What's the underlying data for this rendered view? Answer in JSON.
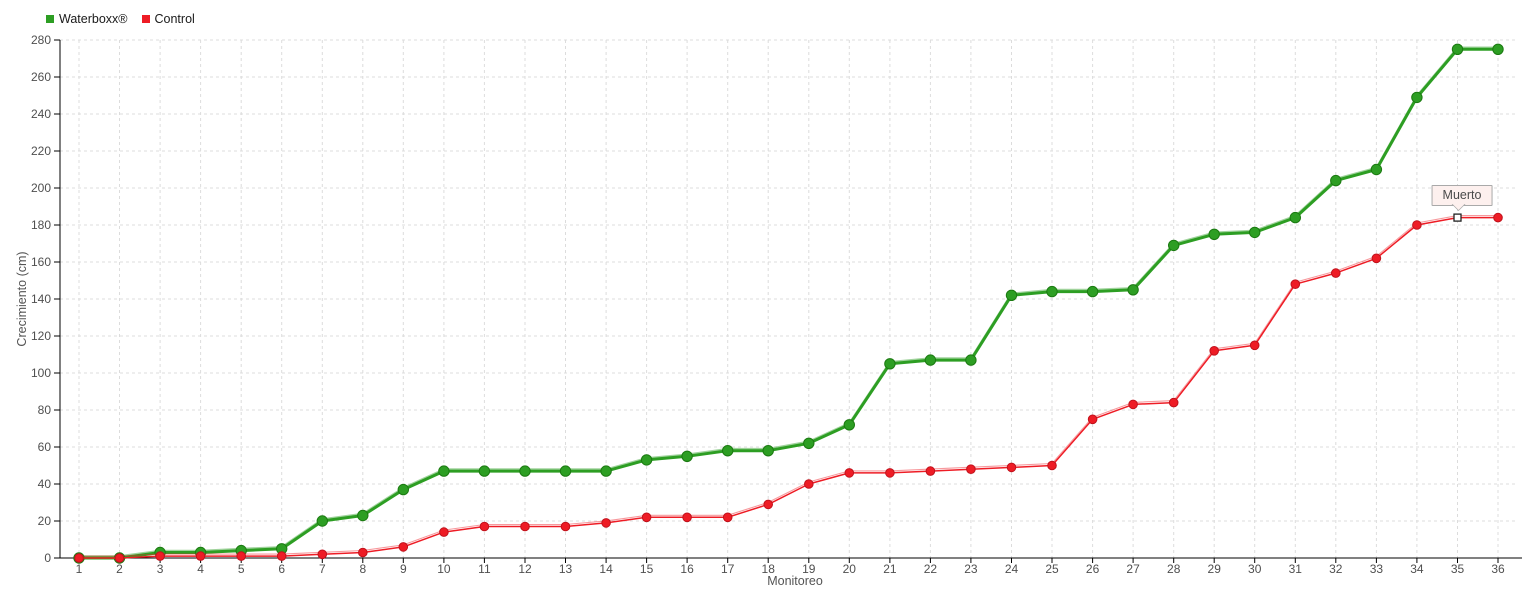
{
  "chart_data": {
    "type": "line",
    "title": "",
    "xlabel": "Monitoreo",
    "ylabel": "Crecimiento (cm)",
    "x": [
      1,
      2,
      3,
      4,
      5,
      6,
      7,
      8,
      9,
      10,
      11,
      12,
      13,
      14,
      15,
      16,
      17,
      18,
      19,
      20,
      21,
      22,
      23,
      24,
      25,
      26,
      27,
      28,
      29,
      30,
      31,
      32,
      33,
      34,
      35,
      36
    ],
    "ylim": [
      0,
      280
    ],
    "ytick_step": 20,
    "grid": "dashed",
    "legend_position": "top-left",
    "series": [
      {
        "name": "Waterboxx®",
        "color": "#2d9e23",
        "marker": "circle",
        "line_width": 3,
        "values": [
          0,
          0,
          3,
          3,
          4,
          5,
          20,
          23,
          37,
          47,
          47,
          47,
          47,
          47,
          53,
          55,
          58,
          58,
          62,
          72,
          105,
          107,
          107,
          142,
          144,
          144,
          145,
          169,
          175,
          176,
          184,
          204,
          210,
          249,
          275,
          275
        ]
      },
      {
        "name": "Control",
        "color": "#ee1c25",
        "marker": "circle",
        "line_width": 1.5,
        "values": [
          0,
          0,
          1,
          1,
          1,
          1,
          2,
          3,
          6,
          14,
          17,
          17,
          17,
          19,
          22,
          22,
          22,
          29,
          40,
          46,
          46,
          47,
          48,
          49,
          50,
          75,
          83,
          84,
          112,
          115,
          148,
          154,
          162,
          180,
          184,
          184
        ]
      }
    ],
    "annotation": {
      "label": "Muerto",
      "x": 35,
      "y": 184,
      "series": "Control",
      "marker": "white-square"
    }
  }
}
